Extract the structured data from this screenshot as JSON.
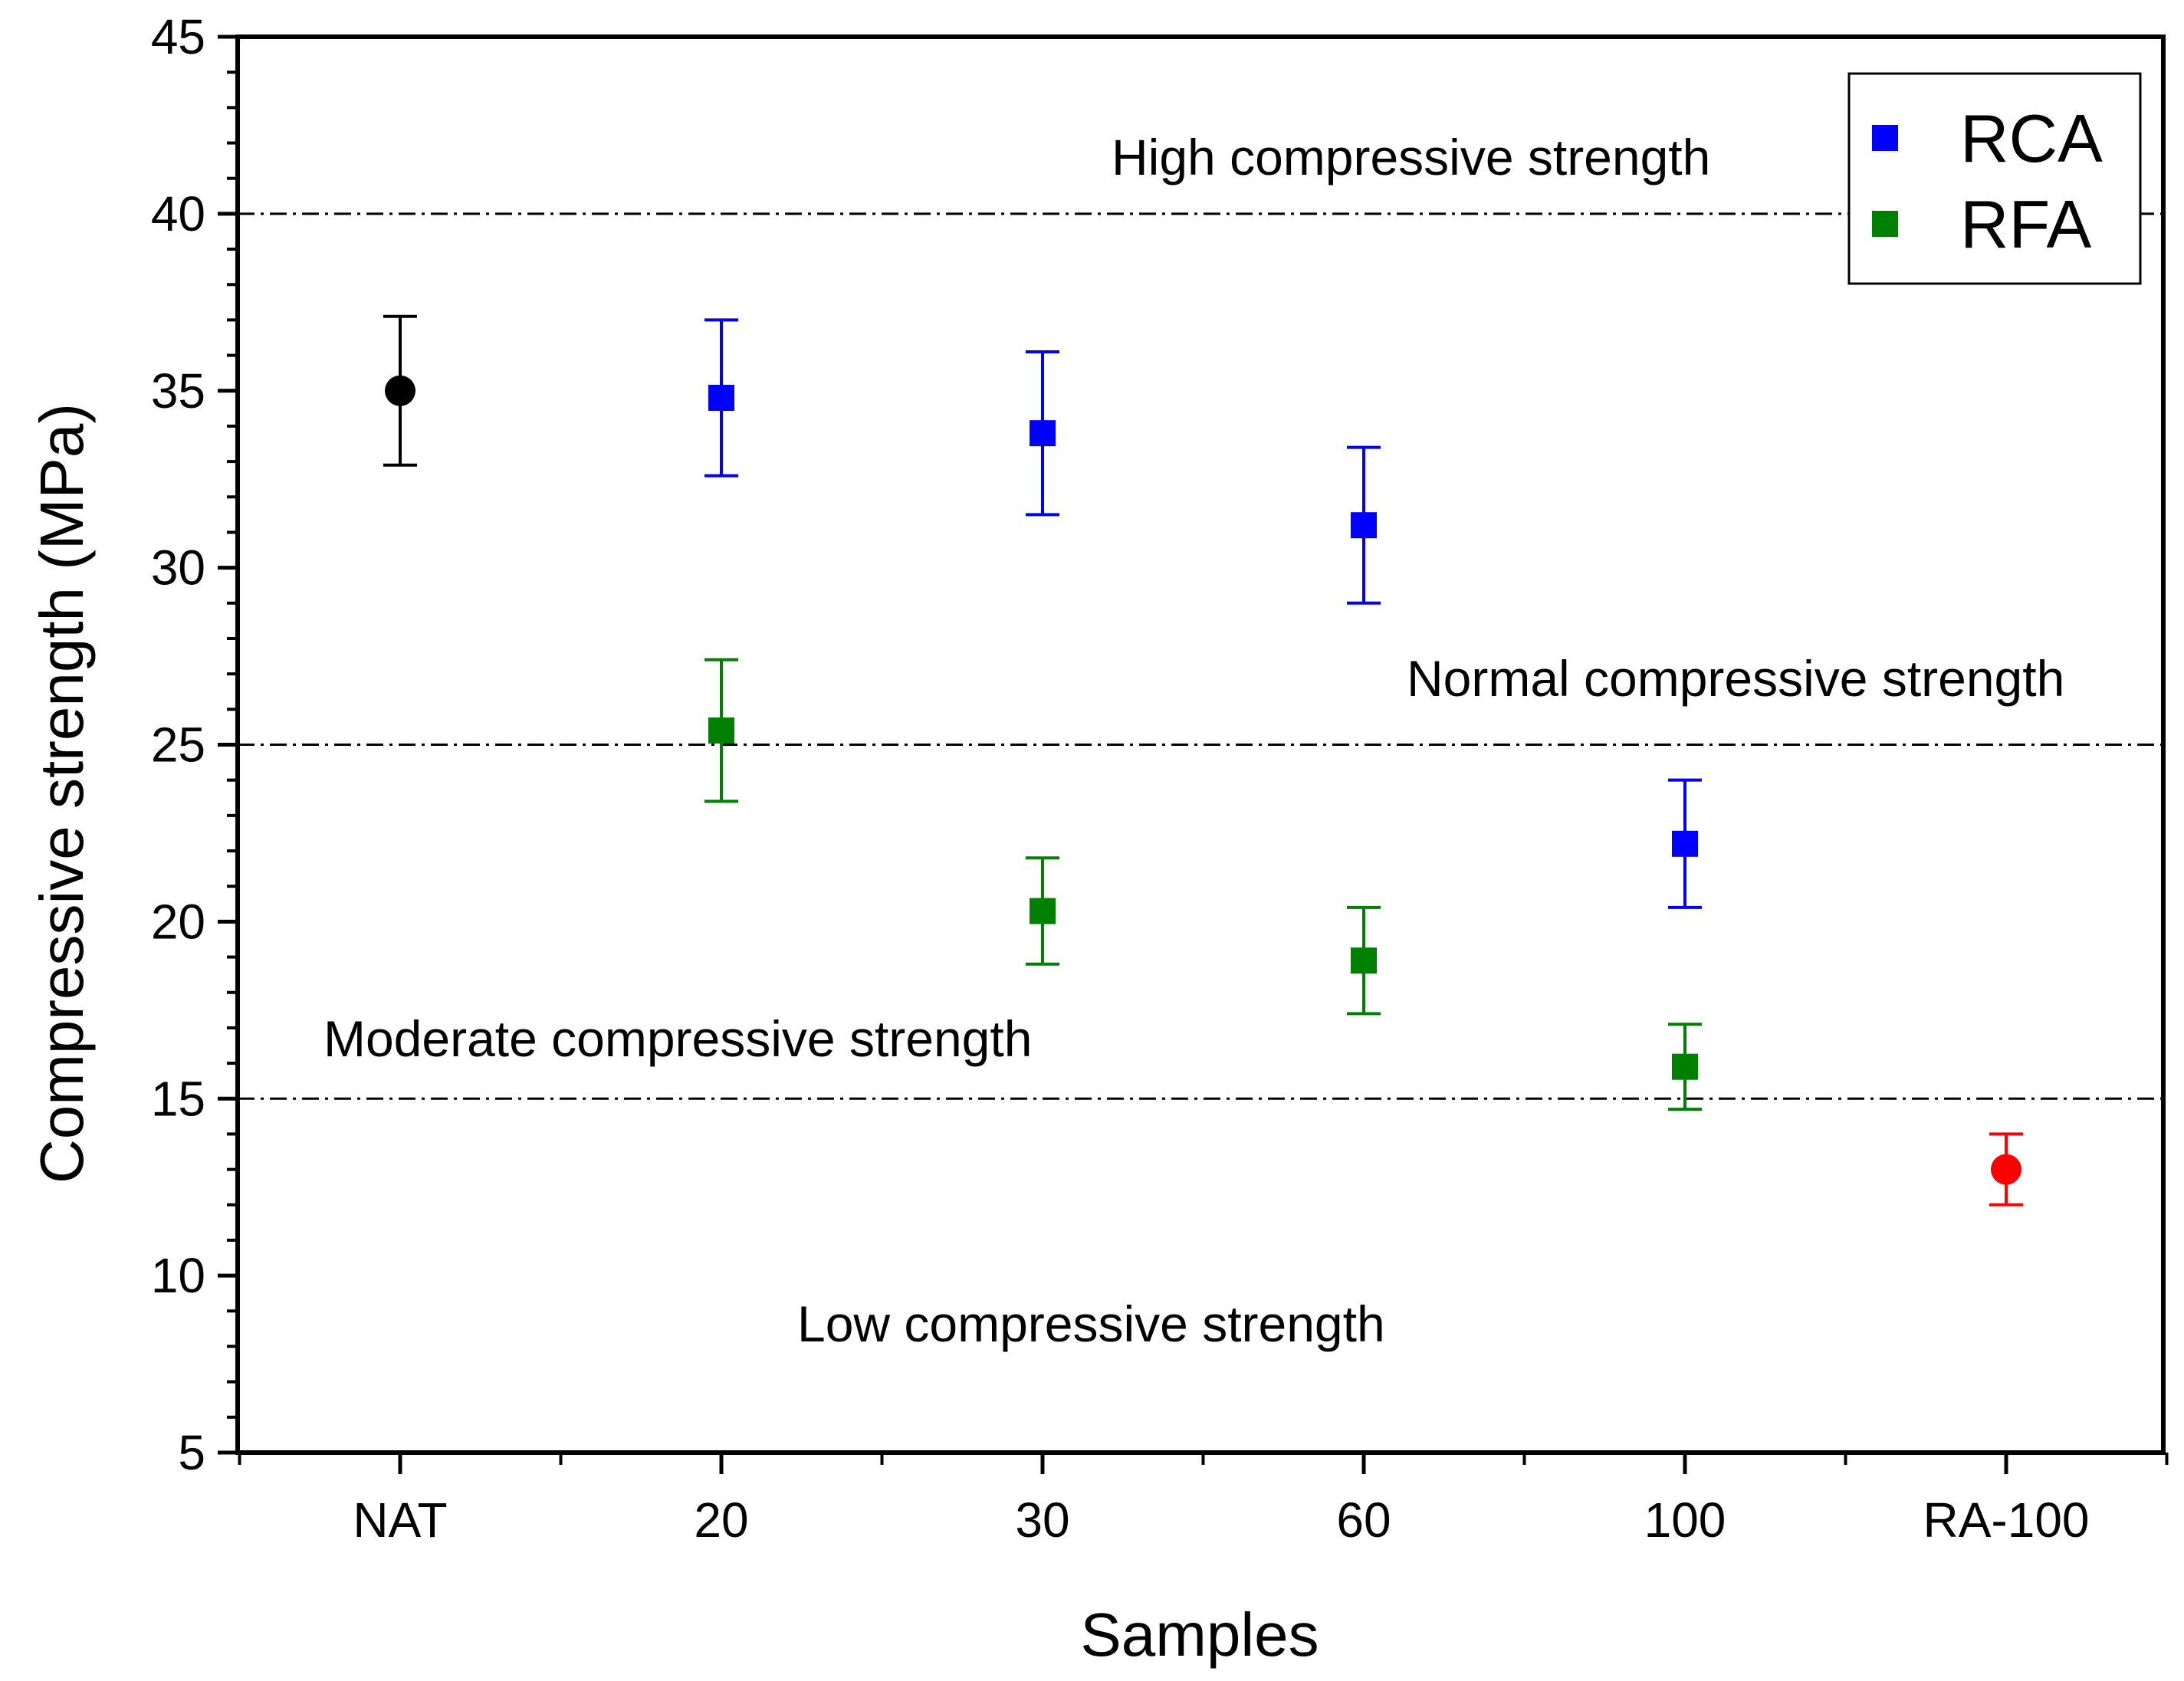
{
  "chart_data": {
    "type": "scatter",
    "title": "",
    "xlabel": "Samples",
    "ylabel": "Compressive strength (MPa)",
    "categories": [
      "NAT",
      "20",
      "30",
      "60",
      "100",
      "RA-100"
    ],
    "ylim": [
      5,
      45
    ],
    "yticks": [
      5,
      10,
      15,
      20,
      25,
      30,
      35,
      40,
      45
    ],
    "grid": false,
    "legend_position": "top-right",
    "series": [
      {
        "name": "NAT",
        "in_legend": false,
        "color": "#000000",
        "marker": "circle",
        "points": [
          {
            "category": "NAT",
            "value": 35.0,
            "err": 2.1
          }
        ]
      },
      {
        "name": "RCA",
        "in_legend": true,
        "color": "#0000ff",
        "marker": "square",
        "points": [
          {
            "category": "20",
            "value": 34.8,
            "err": 2.2
          },
          {
            "category": "30",
            "value": 33.8,
            "err": 2.3
          },
          {
            "category": "60",
            "value": 31.2,
            "err": 2.2
          },
          {
            "category": "100",
            "value": 22.2,
            "err": 1.8
          }
        ]
      },
      {
        "name": "RFA",
        "in_legend": true,
        "color": "#008000",
        "marker": "square",
        "points": [
          {
            "category": "20",
            "value": 25.4,
            "err": 2.0
          },
          {
            "category": "30",
            "value": 20.3,
            "err": 1.5
          },
          {
            "category": "60",
            "value": 18.9,
            "err": 1.5
          },
          {
            "category": "100",
            "value": 15.9,
            "err": 1.2
          }
        ]
      },
      {
        "name": "RA-100",
        "in_legend": false,
        "color": "#ff0000",
        "marker": "circle",
        "points": [
          {
            "category": "RA-100",
            "value": 13.0,
            "err": 1.0
          }
        ]
      }
    ],
    "reference_lines": [
      {
        "value": 40,
        "label": "High compressive strength"
      },
      {
        "value": 25,
        "label": "Normal compressive strength"
      },
      {
        "value": 15,
        "label": "Moderate compressive strength"
      }
    ],
    "annotations": [
      {
        "text": "High compressive strength"
      },
      {
        "text": "Normal compressive strength"
      },
      {
        "text": "Moderate compressive strength"
      },
      {
        "text": "Low compressive strength"
      }
    ]
  }
}
